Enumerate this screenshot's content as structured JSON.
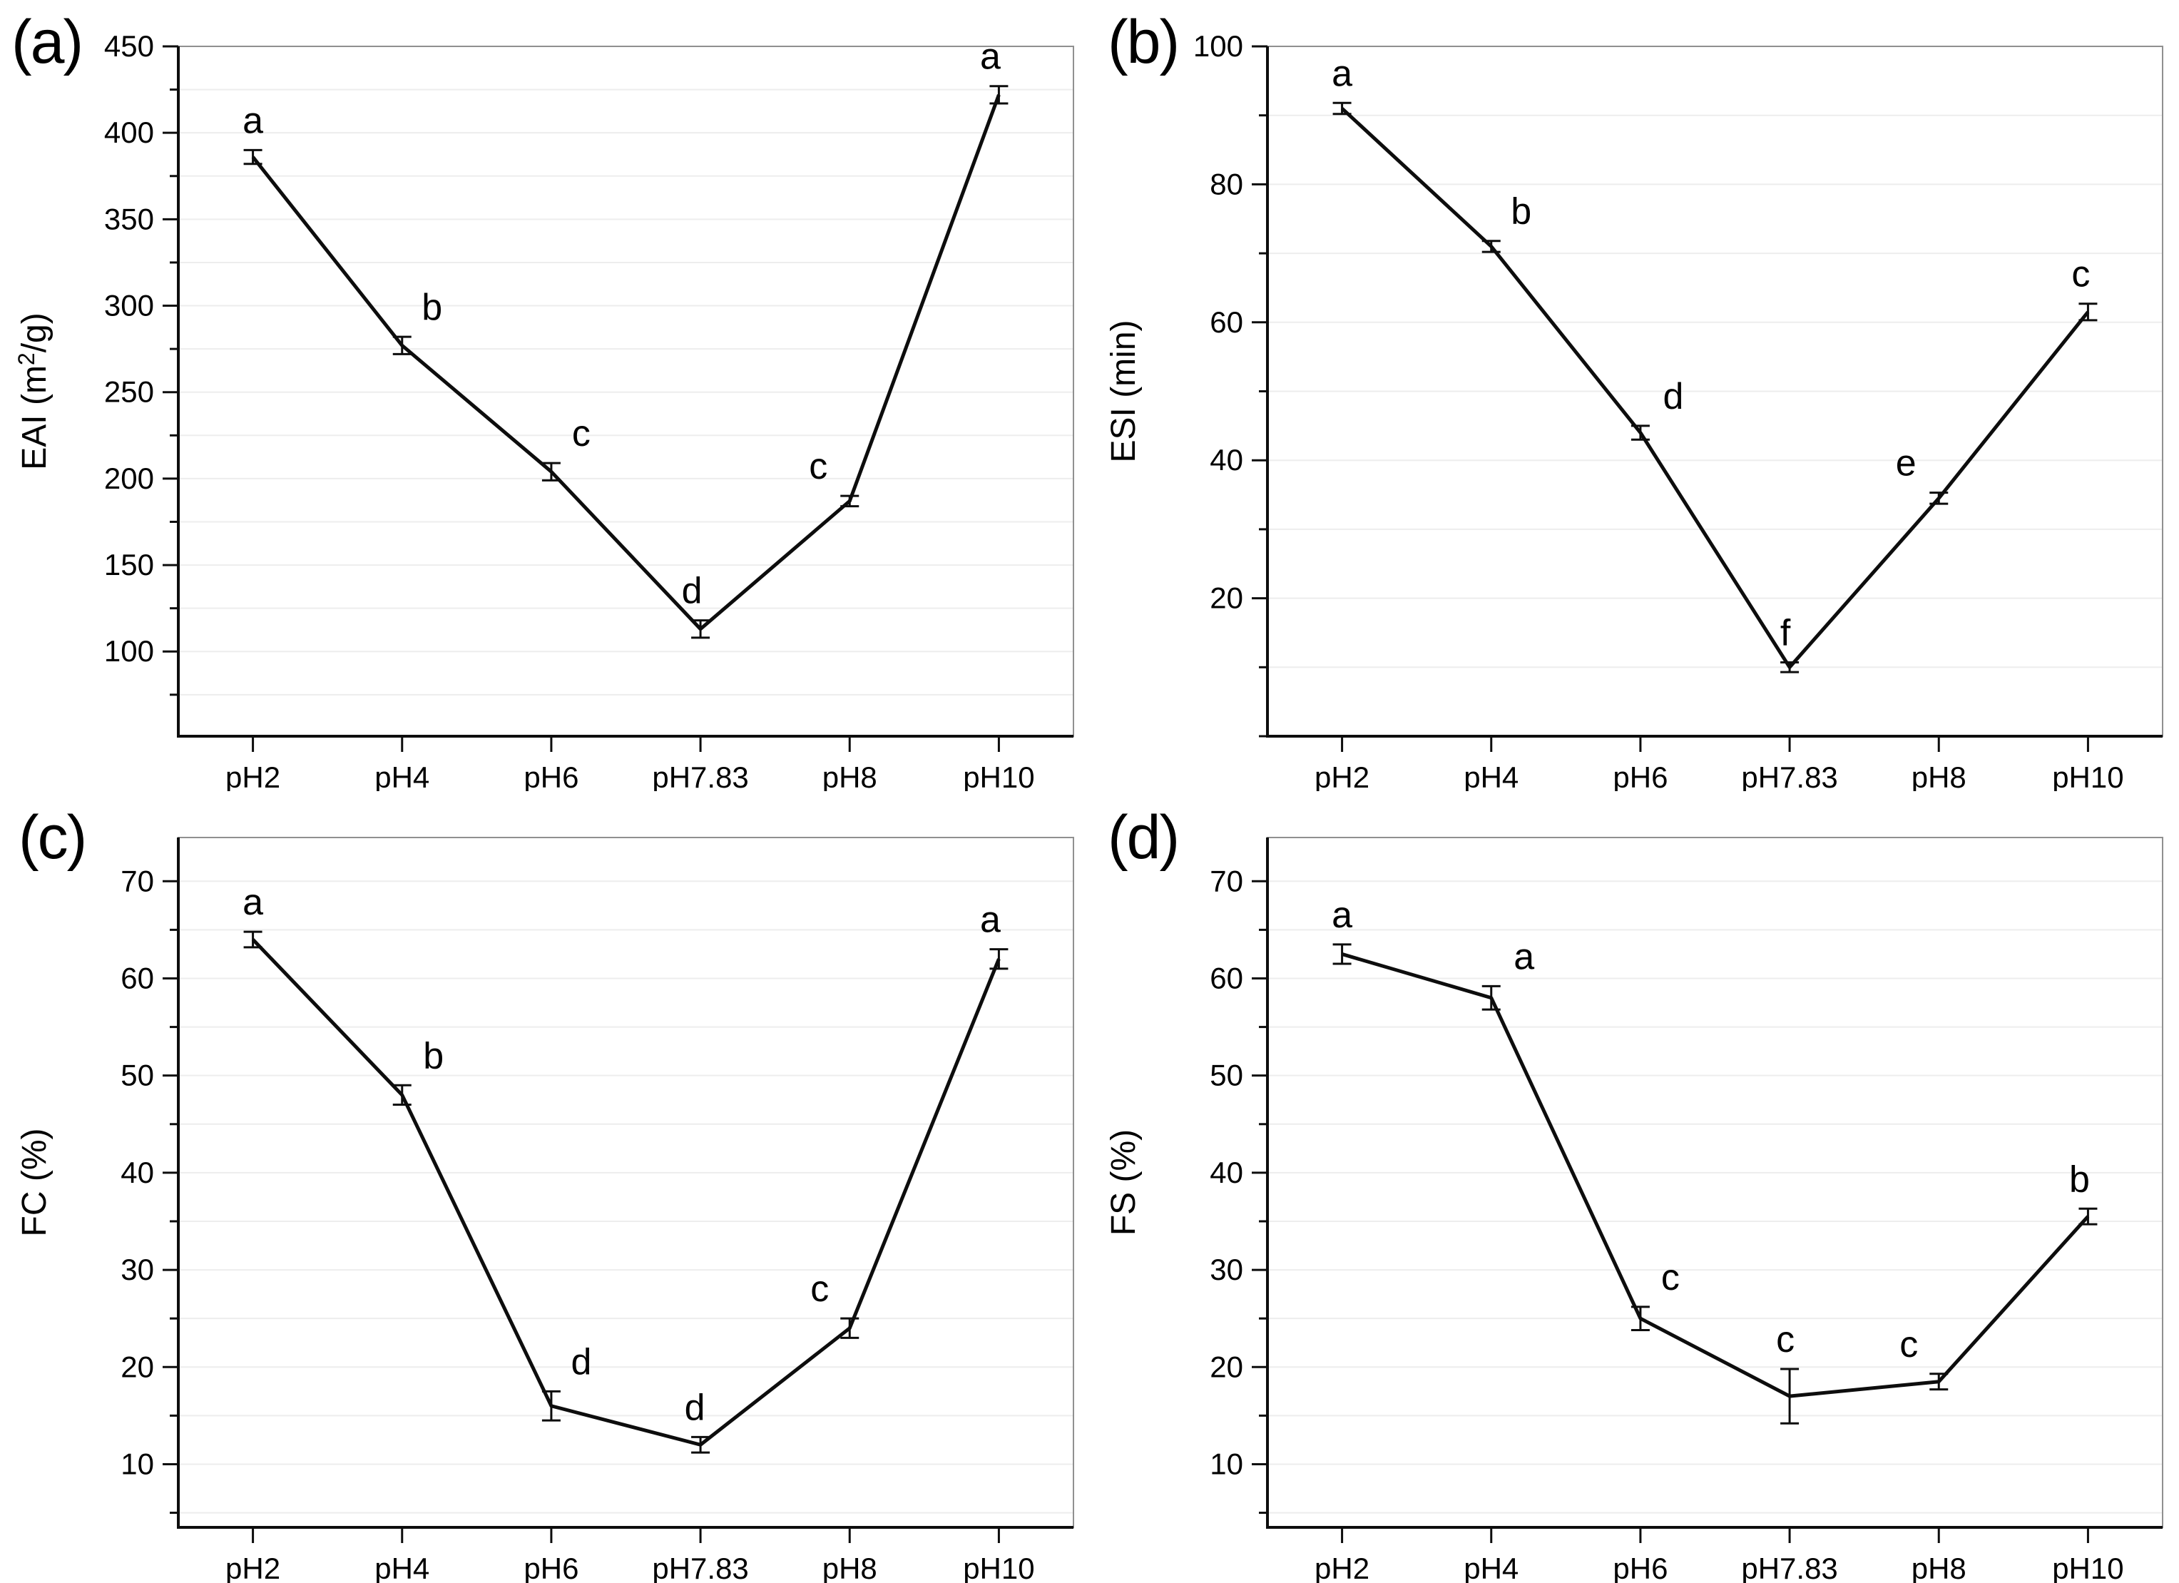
{
  "colors": {
    "series_line": "#0d0d0d",
    "axis": "#0d0d0d",
    "frame": "#909090",
    "gridline": "#ededed",
    "text": "#000000",
    "background": "#ffffff"
  },
  "categories": [
    "pH2",
    "pH4",
    "pH6",
    "pH7.83",
    "pH8",
    "pH10"
  ],
  "chart_data": [
    {
      "type": "line",
      "panel_label": "(a)",
      "ylabel": "EAI (m2/g)",
      "ylabel_parts": [
        [
          "EAI (m",
          false
        ],
        [
          "2",
          true
        ],
        [
          "/g)",
          false
        ]
      ],
      "categories": [
        "pH2",
        "pH4",
        "pH6",
        "pH7.83",
        "pH8",
        "pH10"
      ],
      "values": [
        386,
        277,
        204,
        113,
        187,
        422
      ],
      "errors": [
        4,
        5,
        5,
        5,
        3,
        5
      ],
      "point_labels": [
        "a",
        "b",
        "c",
        "d",
        "c",
        "a"
      ],
      "label_dx": [
        0,
        42,
        42,
        -12,
        -44,
        -12
      ],
      "yticks": [
        100,
        150,
        200,
        250,
        300,
        350,
        400,
        450
      ],
      "minor_step": 25,
      "ylim": [
        51,
        450
      ],
      "grid": "horizontal-minor",
      "legend": "none"
    },
    {
      "type": "line",
      "panel_label": "(b)",
      "ylabel": "ESI (min)",
      "ylabel_parts": [
        [
          "ESI (min)",
          false
        ]
      ],
      "categories": [
        "pH2",
        "pH4",
        "pH6",
        "pH7.83",
        "pH8",
        "pH10"
      ],
      "values": [
        91,
        71,
        44,
        10,
        34.5,
        61.5
      ],
      "errors": [
        0.8,
        0.8,
        1,
        0.7,
        0.8,
        1.2
      ],
      "point_labels": [
        "a",
        "b",
        "d",
        "f",
        "e",
        "c"
      ],
      "label_dx": [
        0,
        42,
        46,
        -6,
        -46,
        -10
      ],
      "yticks": [
        20,
        40,
        60,
        80,
        100
      ],
      "minor_step": 10,
      "ylim": [
        0,
        100
      ],
      "grid": "horizontal-minor",
      "legend": "none"
    },
    {
      "type": "line",
      "panel_label": "(c)",
      "ylabel": "FC (%)",
      "ylabel_parts": [
        [
          "FC (%)",
          false
        ]
      ],
      "categories": [
        "pH2",
        "pH4",
        "pH6",
        "pH7.83",
        "pH8",
        "pH10"
      ],
      "values": [
        64,
        48,
        16,
        12,
        24,
        62
      ],
      "errors": [
        0.8,
        1,
        1.5,
        0.8,
        1,
        1
      ],
      "point_labels": [
        "a",
        "b",
        "d",
        "d",
        "c",
        "a"
      ],
      "label_dx": [
        0,
        44,
        42,
        -8,
        -42,
        -12
      ],
      "yticks": [
        10,
        20,
        30,
        40,
        50,
        60,
        70
      ],
      "minor_step": 5,
      "ylim": [
        3.5,
        74.5
      ],
      "grid": "horizontal-minor",
      "legend": "none"
    },
    {
      "type": "line",
      "panel_label": "(d)",
      "ylabel": "FS (%)",
      "ylabel_parts": [
        [
          "FS (%)",
          false
        ]
      ],
      "categories": [
        "pH2",
        "pH4",
        "pH6",
        "pH7.83",
        "pH8",
        "pH10"
      ],
      "values": [
        62.5,
        58,
        25,
        17,
        18.5,
        35.5
      ],
      "errors": [
        1,
        1.2,
        1.2,
        2.8,
        0.8,
        0.8
      ],
      "point_labels": [
        "a",
        "a",
        "c",
        "c",
        "c",
        "b"
      ],
      "label_dx": [
        0,
        46,
        42,
        -6,
        -42,
        -12
      ],
      "yticks": [
        10,
        20,
        30,
        40,
        50,
        60,
        70
      ],
      "minor_step": 5,
      "ylim": [
        3.5,
        74.5
      ],
      "grid": "horizontal-minor",
      "legend": "none"
    }
  ]
}
